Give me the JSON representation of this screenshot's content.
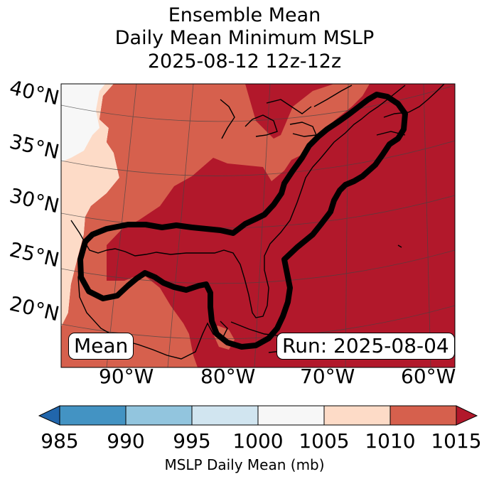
{
  "title": {
    "line1": "Ensemble Mean",
    "line2": "Daily Mean Minimum MSLP",
    "line3": "2025-08-12 12z-12z"
  },
  "map": {
    "lat_labels": [
      "40°N",
      "35°N",
      "30°N",
      "25°N",
      "20°N"
    ],
    "lon_labels": [
      "90°W",
      "80°W",
      "70°W",
      "60°W"
    ],
    "mean_label": "Mean",
    "run_label": "Run: 2025-08-04",
    "contour_color": "#000000"
  },
  "colorbar": {
    "ticks": [
      "985",
      "990",
      "995",
      "1000",
      "1005",
      "1010",
      "1015"
    ],
    "colors": [
      "#2166ac",
      "#4393c3",
      "#92c5de",
      "#d1e5f0",
      "#f7f7f7",
      "#fddbc7",
      "#d6604d",
      "#b2182b"
    ],
    "label": "MSLP Daily Mean (mb)"
  }
}
